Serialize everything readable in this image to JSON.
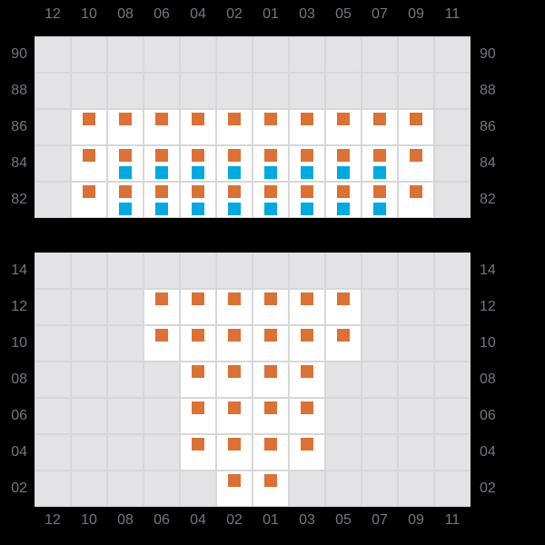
{
  "page": {
    "background": "#000000"
  },
  "colors": {
    "empty_cell": "#e3e3e5",
    "active_cell": "#ffffff",
    "gridline": "#d7d7d9",
    "orange_square": "#db7134",
    "blue_square": "#00a9e0",
    "label_text": "#75757d"
  },
  "column_labels": [
    "12",
    "10",
    "08",
    "06",
    "04",
    "02",
    "01",
    "03",
    "05",
    "07",
    "09",
    "11"
  ],
  "chart_data": [
    {
      "type": "heatmap",
      "name": "upper-pattern-grid",
      "x_labels": [
        "12",
        "10",
        "08",
        "06",
        "04",
        "02",
        "01",
        "03",
        "05",
        "07",
        "09",
        "11"
      ],
      "y_labels": [
        "90",
        "88",
        "86",
        "84",
        "82"
      ],
      "legend": {
        ".": "empty gray cell",
        "O": "white cell with orange square",
        "OB": "white cell with orange square above blue square"
      },
      "rows": [
        [
          ".",
          ".",
          ".",
          ".",
          ".",
          ".",
          ".",
          ".",
          ".",
          ".",
          ".",
          "."
        ],
        [
          ".",
          ".",
          ".",
          ".",
          ".",
          ".",
          ".",
          ".",
          ".",
          ".",
          ".",
          "."
        ],
        [
          ".",
          "O",
          "O",
          "O",
          "O",
          "O",
          "O",
          "O",
          "O",
          "O",
          "O",
          "."
        ],
        [
          ".",
          "O",
          "OB",
          "OB",
          "OB",
          "OB",
          "OB",
          "OB",
          "OB",
          "OB",
          "O",
          "."
        ],
        [
          ".",
          "O",
          "OB",
          "OB",
          "OB",
          "OB",
          "OB",
          "OB",
          "OB",
          "OB",
          "O",
          "."
        ]
      ]
    },
    {
      "type": "heatmap",
      "name": "lower-pattern-grid",
      "x_labels": [
        "12",
        "10",
        "08",
        "06",
        "04",
        "02",
        "01",
        "03",
        "05",
        "07",
        "09",
        "11"
      ],
      "y_labels": [
        "14",
        "12",
        "10",
        "08",
        "06",
        "04",
        "02"
      ],
      "legend": {
        ".": "empty gray cell",
        "O": "white cell with orange square"
      },
      "rows": [
        [
          ".",
          ".",
          ".",
          ".",
          ".",
          ".",
          ".",
          ".",
          ".",
          ".",
          ".",
          "."
        ],
        [
          ".",
          ".",
          ".",
          "O",
          "O",
          "O",
          "O",
          "O",
          "O",
          ".",
          ".",
          "."
        ],
        [
          ".",
          ".",
          ".",
          "O",
          "O",
          "O",
          "O",
          "O",
          "O",
          ".",
          ".",
          "."
        ],
        [
          ".",
          ".",
          ".",
          ".",
          "O",
          "O",
          "O",
          "O",
          ".",
          ".",
          ".",
          "."
        ],
        [
          ".",
          ".",
          ".",
          ".",
          "O",
          "O",
          "O",
          "O",
          ".",
          ".",
          ".",
          "."
        ],
        [
          ".",
          ".",
          ".",
          ".",
          "O",
          "O",
          "O",
          "O",
          ".",
          ".",
          ".",
          "."
        ],
        [
          ".",
          ".",
          ".",
          ".",
          ".",
          "O",
          "O",
          ".",
          ".",
          ".",
          ".",
          "."
        ]
      ]
    }
  ]
}
